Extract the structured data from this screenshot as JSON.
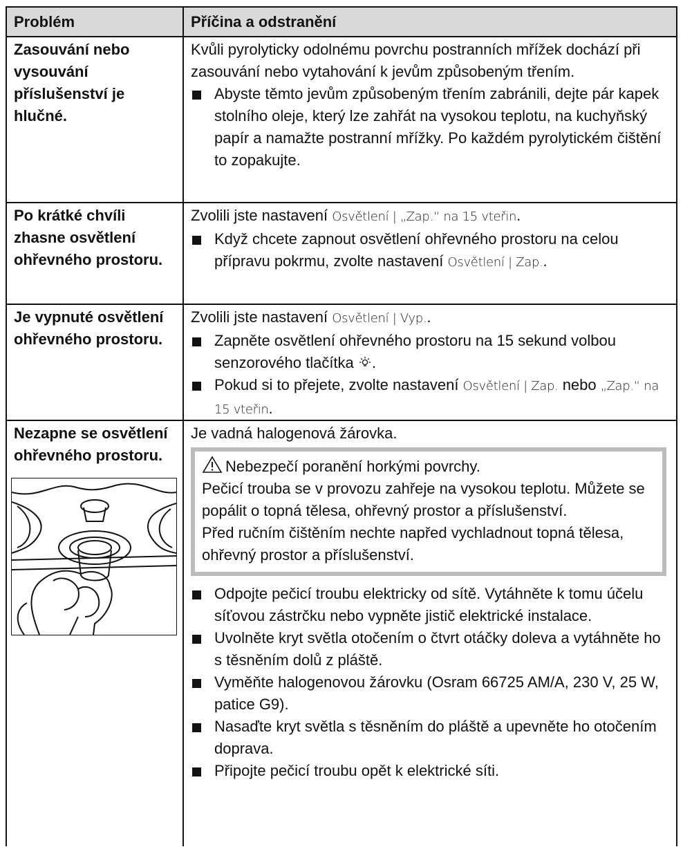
{
  "table": {
    "header": [
      "Problém",
      "Příčina a odstranění"
    ],
    "rows": [
      {
        "problem": "Zasouvání nebo vysouvání příslušenství je hlučné.",
        "cause": [
          "Kvůli pyrolyticky odolnému povrchu postranních mřížek dochází při zasouvání nebo vytahování k jevům způsobeným třením."
        ],
        "steps": [
          [
            "Abyste těmto jevům způsobeným třením zabránili, dejte pár kapek stolního oleje, který lze zahřát na vysokou teplotu, na kuchyňský papír a namažte postranní mřížky. Po každém pyrolytickém čištění to zopakujte."
          ]
        ]
      },
      {
        "problem": "Po krátké chvíli zhasne osvětlení ohřevného prostoru.",
        "cause": [
          "Zvolili jste nastavení ",
          "Osvětlení | „Zap.“ na 15 vteřin",
          "."
        ],
        "steps": [
          [
            "Když chcete zapnout osvětlení ohřevného prostoru na celou přípravu pokrmu, zvolte nastavení ",
            "Osvětlení | Zap.",
            "."
          ]
        ]
      },
      {
        "problem": "Je vypnuté osvětlení ohřevného prostoru.",
        "cause": [
          "Zvolili jste nastavení ",
          "Osvětlení | Vyp.",
          "."
        ],
        "steps": [
          [
            "Zapněte osvětlení ohřevného prostoru na 15 sekund volbou senzorového tlačítka ",
            "."
          ],
          [
            "Pokud si to přejete, zvolte nastavení ",
            "Osvětlení | Zap.",
            " nebo ",
            "„Zap.“ na 15 vteřin",
            "."
          ]
        ]
      },
      {
        "problem": "Nezapne se osvětlení ohřevného prostoru.",
        "cause": [
          "Je vadná halogenová žárovka."
        ],
        "warning": {
          "title": "Nebezpečí poranění horkými povrchy.",
          "paragraphs": [
            "Pečicí trouba se v provozu zahřeje na vysokou teplotu. Můžete se popálit o topná tělesa, ohřevný prostor a příslušenství.",
            "Před ručním čištěním nechte napřed vychladnout topná tělesa, ohřevný prostor a příslušenství."
          ]
        },
        "steps": [
          [
            "Odpojte pečicí troubu elektricky od sítě. Vytáhněte k tomu účelu síťovou zástrčku nebo vypněte jistič elektrické instalace."
          ],
          [
            "Uvolněte kryt světla otočením o čtvrt otáčky doleva a vytáhněte ho s těsněním dolů z pláště."
          ],
          [
            "Vyměňte halogenovou žárovku (Osram 66725 AM/A, 230 V, 25 W, patice G9)."
          ],
          [
            "Nasaďte kryt světla s těsněním do pláště a upevněte ho otočením doprava."
          ],
          [
            "Připojte pečicí troubu opět k elektrické síti."
          ]
        ]
      }
    ]
  }
}
